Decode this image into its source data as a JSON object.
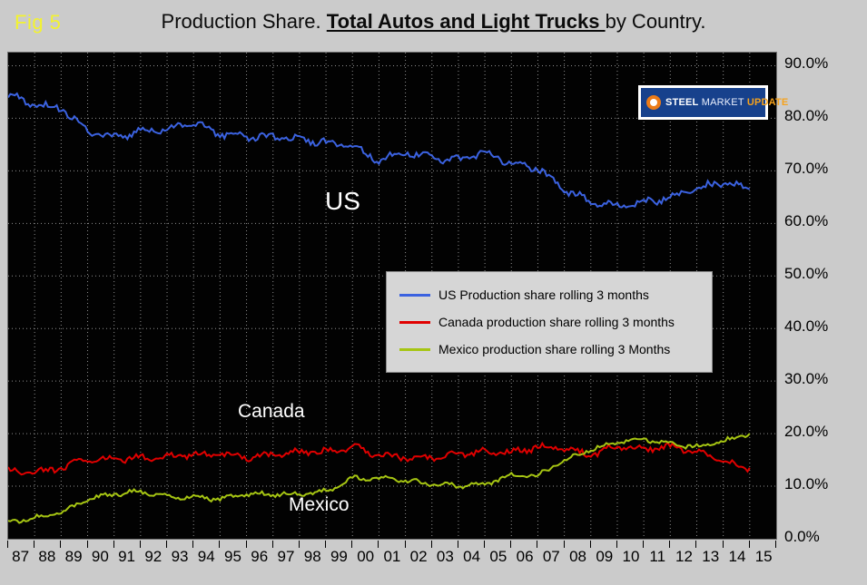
{
  "fig_label": "Fig 5",
  "title": {
    "prefix": "Production Share. ",
    "emphasis": "Total Autos and Light Trucks ",
    "suffix": "by Country."
  },
  "logo": {
    "line1": "STEEL",
    "line2": "MARKET",
    "line3": "UPDATE"
  },
  "chart_data": {
    "type": "line",
    "title": "Production Share. Total Autos and Light Trucks by Country.",
    "x_tick_labels": [
      "87",
      "88",
      "89",
      "90",
      "91",
      "92",
      "93",
      "94",
      "95",
      "96",
      "97",
      "98",
      "99",
      "00",
      "01",
      "02",
      "03",
      "04",
      "05",
      "06",
      "07",
      "08",
      "09",
      "10",
      "11",
      "12",
      "13",
      "14",
      "15"
    ],
    "x_range_years": [
      1987,
      2015
    ],
    "ylim": [
      0,
      92.5
    ],
    "y_ticks": [
      0,
      10,
      20,
      30,
      40,
      50,
      60,
      70,
      80,
      90
    ],
    "y_tick_labels": [
      "0.0%",
      "10.0%",
      "20.0%",
      "30.0%",
      "40.0%",
      "50.0%",
      "60.0%",
      "70.0%",
      "80.0%",
      "90.0%"
    ],
    "grid": true,
    "plot_background": "#020202",
    "legend_position": "center",
    "series": [
      {
        "key": "us",
        "name": "US Production share rolling 3 months",
        "color": "#3b62e0",
        "label_on_chart": "US",
        "values": [
          84.5,
          82.5,
          82.0,
          77.5,
          76.5,
          77.5,
          78.0,
          79.0,
          77.0,
          76.5,
          76.5,
          76.0,
          75.5,
          74.5,
          72.0,
          73.5,
          72.5,
          72.0,
          73.5,
          71.5,
          70.5,
          66.5,
          64.0,
          63.5,
          64.0,
          65.0,
          66.5,
          68.0,
          66.5
        ]
      },
      {
        "key": "canada",
        "name": "Canada production share rolling 3 months",
        "color": "#e00000",
        "label_on_chart": "Canada",
        "values": [
          13.0,
          12.5,
          13.5,
          15.0,
          15.0,
          15.5,
          15.5,
          16.0,
          16.0,
          15.5,
          16.0,
          16.5,
          16.5,
          17.5,
          16.0,
          15.5,
          15.5,
          16.0,
          16.5,
          16.5,
          17.5,
          17.0,
          16.0,
          17.5,
          17.0,
          17.5,
          16.5,
          14.5,
          13.5
        ]
      },
      {
        "key": "mexico",
        "name": "Mexico production share rolling 3 Months",
        "color": "#a6c513",
        "label_on_chart": "Mexico",
        "values": [
          3.0,
          4.0,
          5.0,
          7.5,
          8.5,
          9.0,
          8.0,
          8.0,
          7.5,
          8.5,
          8.5,
          8.5,
          9.0,
          11.5,
          11.5,
          11.0,
          10.5,
          10.0,
          10.5,
          12.0,
          12.0,
          15.0,
          17.0,
          18.5,
          19.0,
          18.0,
          17.5,
          18.5,
          20.0
        ]
      }
    ]
  }
}
